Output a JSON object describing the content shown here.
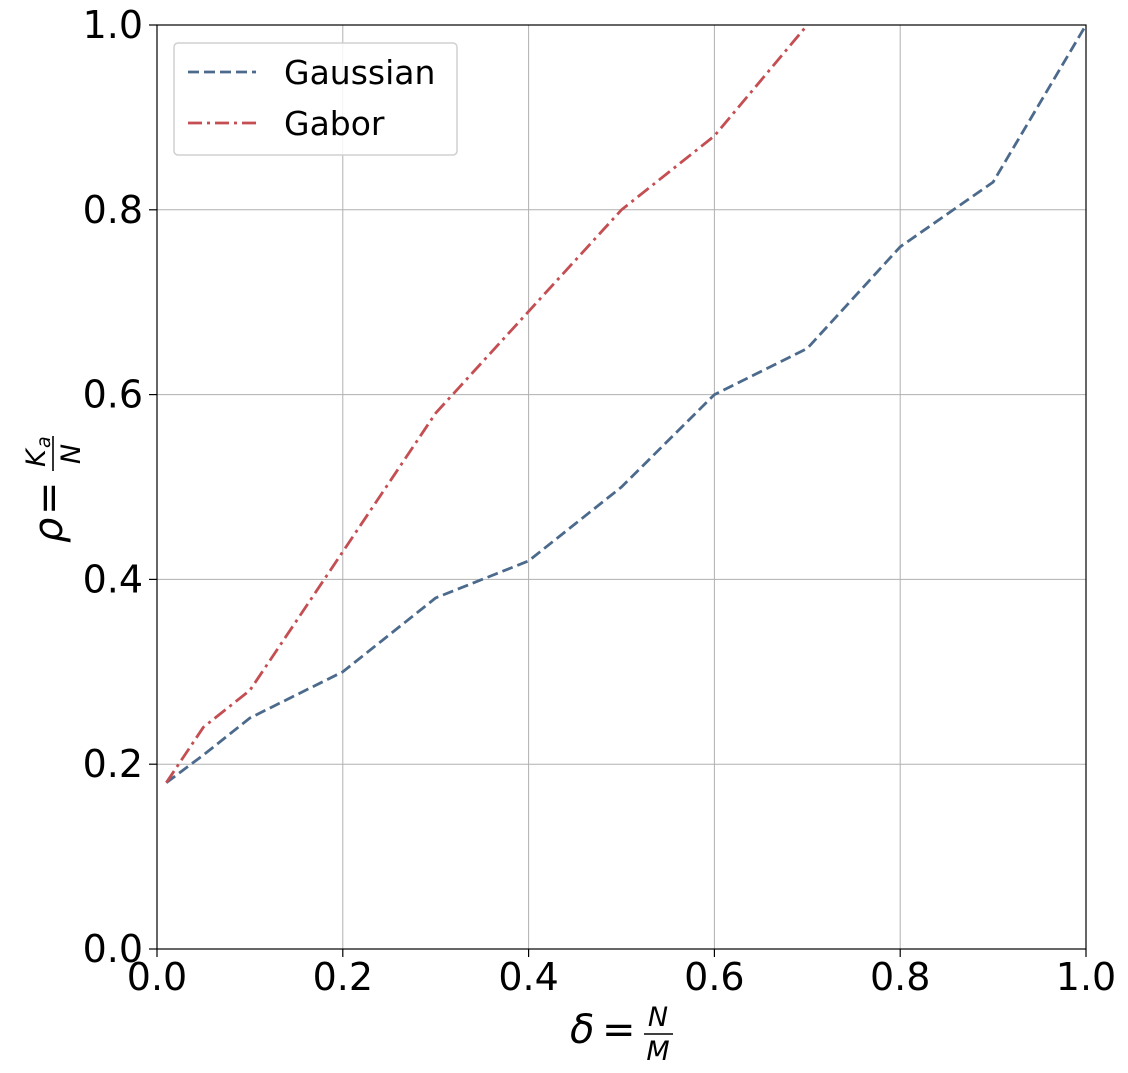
{
  "chart_data": {
    "type": "line",
    "title": "",
    "xlabel": {
      "symbol": "δ",
      "equals": "=",
      "numerator": "N",
      "denominator": "M"
    },
    "ylabel": {
      "symbol": "ρ",
      "equals": "=",
      "numerator": "K",
      "numerator_subscript": "a",
      "denominator": "N"
    },
    "xlim": [
      0.0,
      1.0
    ],
    "ylim": [
      0.0,
      1.0
    ],
    "xticks": [
      0.0,
      0.2,
      0.4,
      0.6,
      0.8,
      1.0
    ],
    "yticks": [
      0.0,
      0.2,
      0.4,
      0.6,
      0.8,
      1.0
    ],
    "xtick_labels": [
      "0.0",
      "0.2",
      "0.4",
      "0.6",
      "0.8",
      "1.0"
    ],
    "ytick_labels": [
      "0.0",
      "0.2",
      "0.4",
      "0.6",
      "0.8",
      "1.0"
    ],
    "grid": true,
    "legend_position": "top-left",
    "series": [
      {
        "name": "Gaussian",
        "color": "#4c6a8c",
        "linestyle": "dashed",
        "x": [
          0.01,
          0.05,
          0.1,
          0.2,
          0.3,
          0.4,
          0.5,
          0.6,
          0.7,
          0.8,
          0.9,
          1.0
        ],
        "y": [
          0.18,
          0.21,
          0.25,
          0.3,
          0.38,
          0.42,
          0.5,
          0.6,
          0.65,
          0.76,
          0.83,
          1.0
        ]
      },
      {
        "name": "Gabor",
        "color": "#c44e52",
        "linestyle": "dashdot",
        "x": [
          0.01,
          0.05,
          0.1,
          0.2,
          0.3,
          0.4,
          0.5,
          0.6,
          0.7
        ],
        "y": [
          0.18,
          0.24,
          0.28,
          0.43,
          0.58,
          0.69,
          0.8,
          0.88,
          1.0
        ]
      }
    ]
  }
}
